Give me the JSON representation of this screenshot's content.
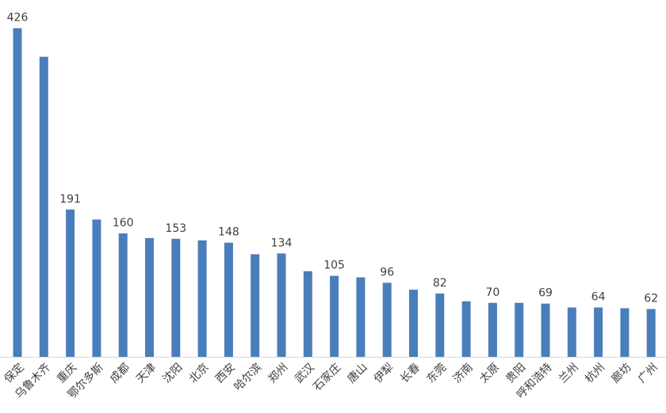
{
  "chart_data": {
    "type": "bar",
    "categories": [
      "保定",
      "乌鲁木齐",
      "重庆",
      "鄂尔多斯",
      "成都",
      "天津",
      "沈阳",
      "北京",
      "西安",
      "哈尔滨",
      "郑州",
      "武汉",
      "石家庄",
      "唐山",
      "伊犁",
      "长春",
      "东莞",
      "济南",
      "太原",
      "贵阳",
      "呼和浩特",
      "兰州",
      "杭州",
      "廊坊",
      "广州"
    ],
    "values": [
      426,
      389,
      191,
      178,
      160,
      154,
      153,
      151,
      148,
      133,
      134,
      111,
      105,
      103,
      96,
      87,
      82,
      72,
      70,
      70,
      69,
      64,
      64,
      63,
      62
    ],
    "color": "#4a7ebb",
    "ylim": [
      0,
      440
    ]
  }
}
